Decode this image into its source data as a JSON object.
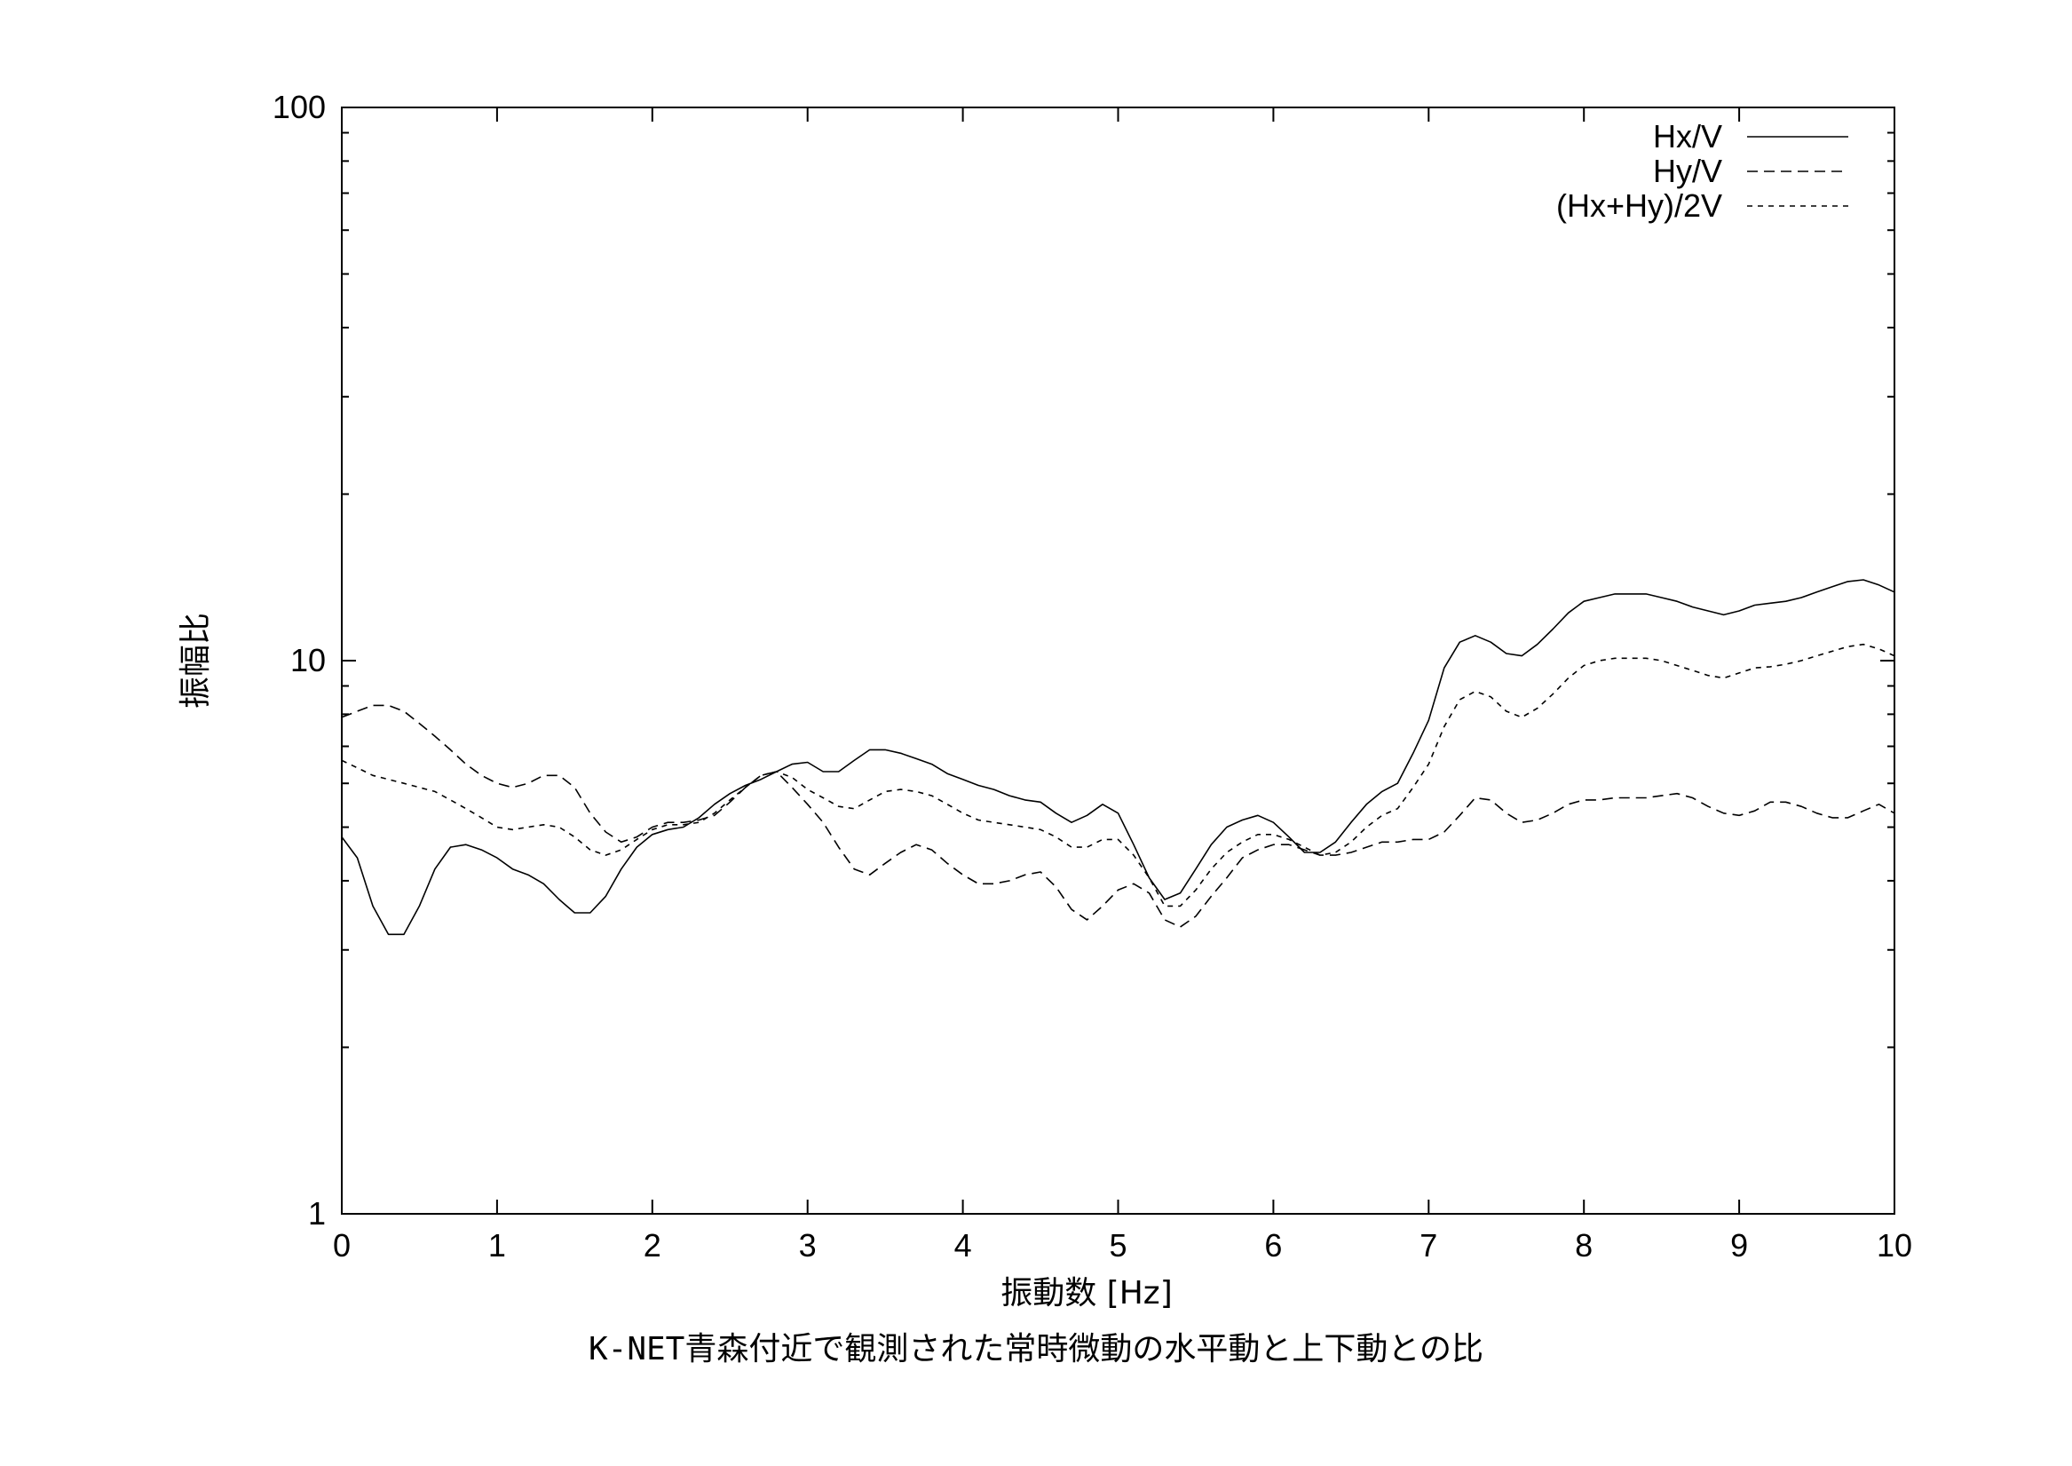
{
  "chart_data": {
    "type": "line",
    "title": "",
    "caption": "K-NET青森付近で観測された常時微動の水平動と上下動との比",
    "xlabel": "振動数 [Hz]",
    "ylabel": "振幅比",
    "xlim": [
      0,
      10
    ],
    "ylim": [
      1,
      100
    ],
    "y_scale": "log",
    "grid": false,
    "legend_position": "top-right",
    "x_ticks": [
      "0",
      "1",
      "2",
      "3",
      "4",
      "5",
      "6",
      "7",
      "8",
      "9",
      "10"
    ],
    "y_ticks": [
      "1",
      "10",
      "100"
    ],
    "x": [
      0,
      0.1,
      0.2,
      0.3,
      0.4,
      0.5,
      0.6,
      0.7,
      0.8,
      0.9,
      1.0,
      1.1,
      1.2,
      1.3,
      1.4,
      1.5,
      1.6,
      1.7,
      1.8,
      1.9,
      2.0,
      2.1,
      2.2,
      2.3,
      2.4,
      2.5,
      2.6,
      2.7,
      2.8,
      2.9,
      3.0,
      3.1,
      3.2,
      3.3,
      3.4,
      3.5,
      3.6,
      3.7,
      3.8,
      3.9,
      4.0,
      4.1,
      4.2,
      4.3,
      4.4,
      4.5,
      4.6,
      4.7,
      4.8,
      4.9,
      5.0,
      5.1,
      5.2,
      5.3,
      5.4,
      5.5,
      5.6,
      5.7,
      5.8,
      5.9,
      6.0,
      6.1,
      6.2,
      6.3,
      6.4,
      6.5,
      6.6,
      6.7,
      6.8,
      6.9,
      7.0,
      7.1,
      7.2,
      7.3,
      7.4,
      7.5,
      7.6,
      7.7,
      7.8,
      7.9,
      8.0,
      8.1,
      8.2,
      8.3,
      8.4,
      8.5,
      8.6,
      8.7,
      8.8,
      8.9,
      9.0,
      9.1,
      9.2,
      9.3,
      9.4,
      9.5,
      9.6,
      9.7,
      9.8,
      9.9,
      10.0
    ],
    "series": [
      {
        "name": "Hx/V",
        "dash": "solid",
        "values": [
          4.8,
          4.4,
          3.6,
          3.2,
          3.2,
          3.6,
          4.2,
          4.6,
          4.65,
          4.55,
          4.4,
          4.2,
          4.1,
          3.95,
          3.7,
          3.5,
          3.5,
          3.75,
          4.2,
          4.6,
          4.85,
          4.95,
          5.0,
          5.2,
          5.5,
          5.75,
          5.95,
          6.1,
          6.3,
          6.5,
          6.55,
          6.3,
          6.3,
          6.6,
          6.9,
          6.9,
          6.8,
          6.65,
          6.5,
          6.25,
          6.1,
          5.95,
          5.85,
          5.7,
          5.6,
          5.55,
          5.3,
          5.1,
          5.25,
          5.5,
          5.3,
          4.65,
          4.05,
          3.7,
          3.8,
          4.2,
          4.65,
          5.0,
          5.15,
          5.25,
          5.1,
          4.8,
          4.5,
          4.5,
          4.7,
          5.1,
          5.5,
          5.8,
          6.0,
          6.8,
          7.8,
          9.7,
          10.8,
          11.1,
          10.8,
          10.3,
          10.2,
          10.7,
          11.4,
          12.2,
          12.8,
          13.0,
          13.2,
          13.2,
          13.2,
          13.0,
          12.8,
          12.5,
          12.3,
          12.1,
          12.3,
          12.6,
          12.7,
          12.8,
          13.0,
          13.3,
          13.6,
          13.9,
          14.0,
          13.7,
          13.3
        ]
      },
      {
        "name": "Hy/V",
        "dash": "long",
        "values": [
          7.9,
          8.1,
          8.3,
          8.3,
          8.1,
          7.7,
          7.3,
          6.9,
          6.5,
          6.2,
          6.0,
          5.9,
          6.0,
          6.2,
          6.2,
          5.9,
          5.3,
          4.9,
          4.7,
          4.8,
          5.0,
          5.1,
          5.1,
          5.15,
          5.25,
          5.55,
          5.9,
          6.2,
          6.3,
          5.9,
          5.5,
          5.1,
          4.6,
          4.2,
          4.1,
          4.3,
          4.5,
          4.65,
          4.55,
          4.3,
          4.1,
          3.95,
          3.95,
          4.0,
          4.1,
          4.15,
          3.9,
          3.55,
          3.4,
          3.6,
          3.85,
          3.95,
          3.8,
          3.4,
          3.3,
          3.45,
          3.75,
          4.05,
          4.4,
          4.55,
          4.65,
          4.65,
          4.55,
          4.45,
          4.45,
          4.5,
          4.6,
          4.7,
          4.7,
          4.75,
          4.75,
          4.9,
          5.25,
          5.65,
          5.6,
          5.3,
          5.1,
          5.15,
          5.3,
          5.5,
          5.6,
          5.6,
          5.65,
          5.65,
          5.65,
          5.7,
          5.75,
          5.65,
          5.45,
          5.3,
          5.25,
          5.35,
          5.55,
          5.55,
          5.45,
          5.3,
          5.2,
          5.2,
          5.35,
          5.5,
          5.3
        ]
      },
      {
        "name": "(Hx+Hy)/2V",
        "dash": "short",
        "values": [
          6.6,
          6.4,
          6.2,
          6.1,
          6.0,
          5.9,
          5.8,
          5.6,
          5.4,
          5.2,
          5.0,
          4.95,
          5.0,
          5.05,
          5.0,
          4.8,
          4.55,
          4.45,
          4.55,
          4.75,
          4.95,
          5.05,
          5.05,
          5.1,
          5.3,
          5.6,
          5.9,
          6.2,
          6.3,
          6.15,
          5.85,
          5.65,
          5.45,
          5.4,
          5.6,
          5.8,
          5.85,
          5.8,
          5.7,
          5.5,
          5.3,
          5.15,
          5.1,
          5.05,
          5.0,
          4.95,
          4.8,
          4.6,
          4.6,
          4.75,
          4.75,
          4.45,
          4.05,
          3.6,
          3.6,
          3.85,
          4.2,
          4.5,
          4.7,
          4.85,
          4.85,
          4.75,
          4.6,
          4.45,
          4.5,
          4.7,
          5.0,
          5.25,
          5.4,
          5.9,
          6.5,
          7.6,
          8.5,
          8.8,
          8.6,
          8.1,
          7.9,
          8.2,
          8.7,
          9.3,
          9.8,
          10.0,
          10.1,
          10.1,
          10.1,
          10.0,
          9.8,
          9.6,
          9.4,
          9.3,
          9.5,
          9.7,
          9.75,
          9.85,
          10.0,
          10.2,
          10.4,
          10.6,
          10.7,
          10.5,
          10.2
        ]
      }
    ]
  }
}
